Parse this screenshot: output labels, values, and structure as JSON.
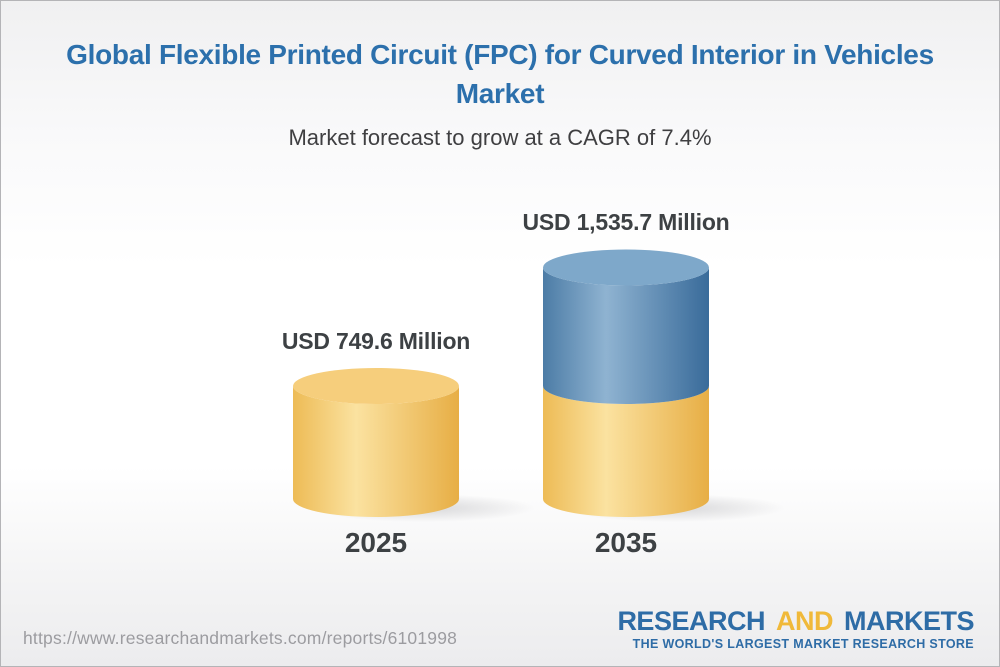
{
  "header": {
    "title": "Global Flexible Printed Circuit (FPC) for Curved Interior in Vehicles Market",
    "subtitle": "Market forecast to grow at a CAGR of 7.4%"
  },
  "chart_data": {
    "type": "bar",
    "title": "Global Flexible Printed Circuit (FPC) for Curved Interior in Vehicles Market",
    "subtitle": "Market forecast to grow at a CAGR of 7.4%",
    "unit": "USD Million",
    "cagr_percent": 7.4,
    "categories": [
      "2025",
      "2035"
    ],
    "values": [
      749.6,
      1535.7
    ],
    "legend": "none",
    "grid": false,
    "bars": [
      {
        "category": "2025",
        "value": 749.6,
        "value_label": "USD 749.6 Million",
        "segments": [
          {
            "value": 749.6,
            "color": "gold"
          }
        ]
      },
      {
        "category": "2035",
        "value": 1535.7,
        "value_label": "USD 1,535.7 Million",
        "segments": [
          {
            "value": 749.6,
            "color": "gold"
          },
          {
            "value": 786.1,
            "color": "blue"
          }
        ]
      }
    ],
    "palette": {
      "gold": {
        "top": "#F6CE7C",
        "body": [
          "#EDBB55",
          "#FBE2A0",
          "#E7AE45"
        ]
      },
      "blue": {
        "top": "#7EA8CA",
        "body": [
          "#4C7CA6",
          "#8FB3D1",
          "#396B9A"
        ]
      }
    }
  },
  "footer": {
    "url": "https://www.researchandmarkets.com/reports/6101998",
    "brand": {
      "word1": "RESEARCH",
      "word2": "AND",
      "word3": "MARKETS",
      "tagline": "THE WORLD'S LARGEST MARKET RESEARCH STORE",
      "blue": "#2E6CA6",
      "gold": "#F0B93A"
    }
  }
}
